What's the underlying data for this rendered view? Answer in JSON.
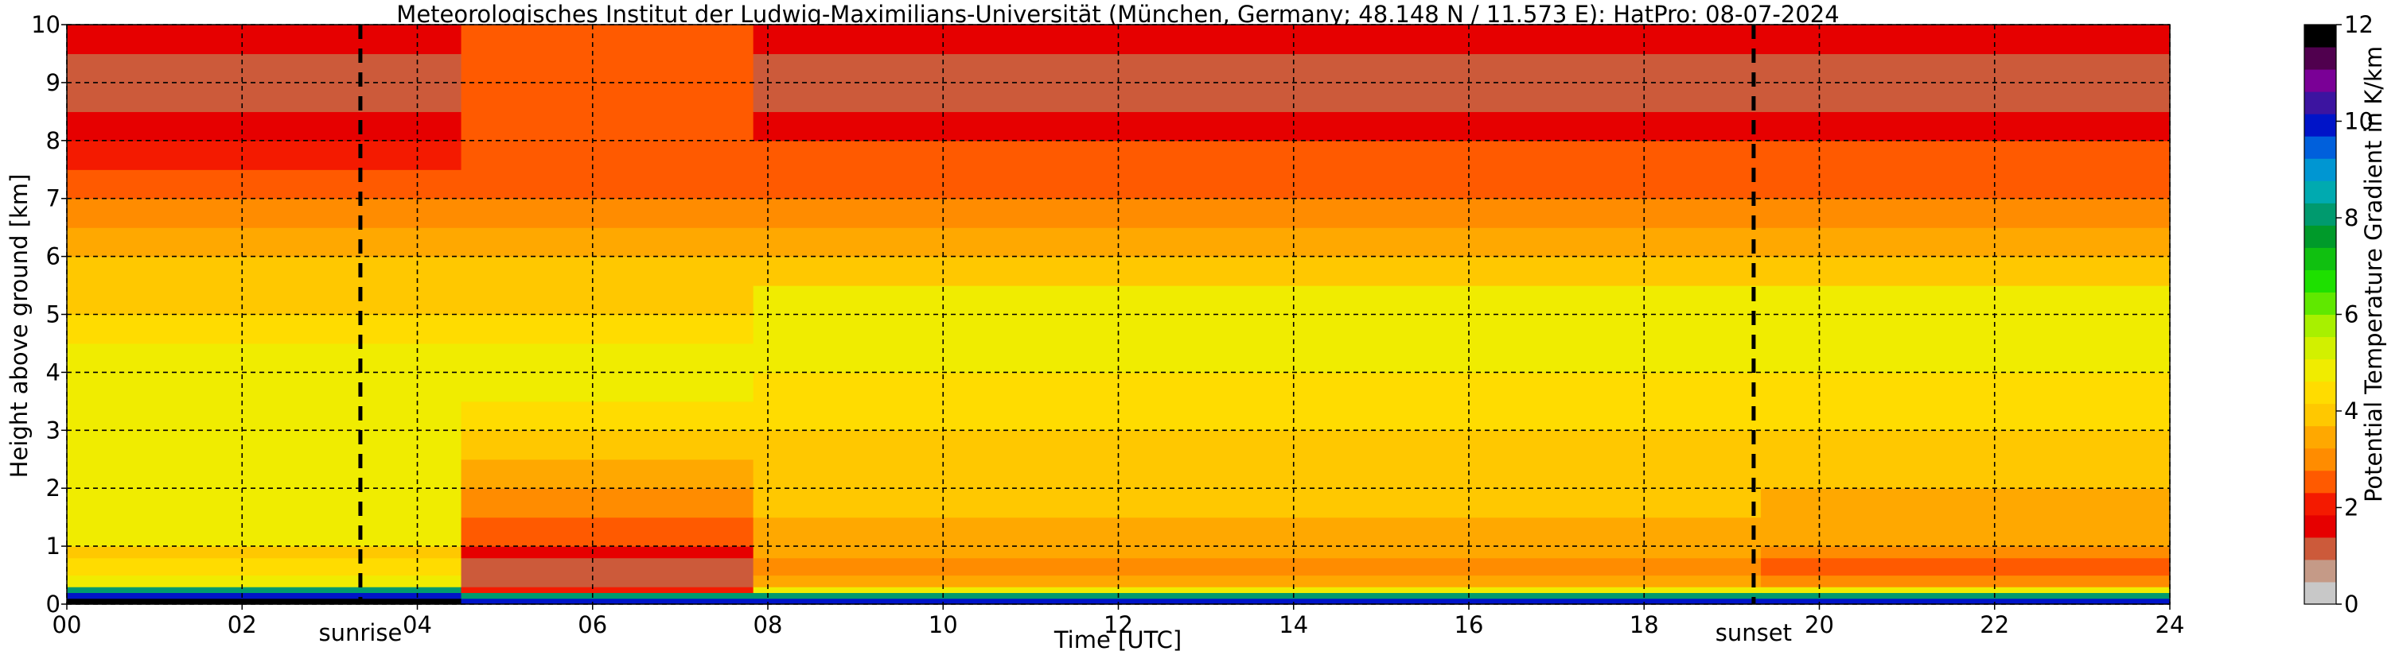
{
  "title": "Meteorologisches Institut der Ludwig-Maximilians-Universität (München, Germany; 48.148 N / 11.573 E):    HatPro: 08-07-2024",
  "chart_data": {
    "type": "heatmap",
    "title": "Meteorologisches Institut der Ludwig-Maximilians-Universität (München, Germany; 48.148 N / 11.573 E):    HatPro: 08-07-2024",
    "xlabel": "Time [UTC]",
    "ylabel": "Height above ground [km]",
    "xlim": [
      0,
      24
    ],
    "ylim": [
      0,
      10
    ],
    "x_ticks": [
      0,
      2,
      4,
      6,
      8,
      10,
      12,
      14,
      16,
      18,
      20,
      22,
      24
    ],
    "x_tick_labels": [
      "00",
      "02",
      "04",
      "06",
      "08",
      "10",
      "12",
      "14",
      "16",
      "18",
      "20",
      "22",
      "24"
    ],
    "y_ticks": [
      0,
      1,
      2,
      3,
      4,
      5,
      6,
      7,
      8,
      9,
      10
    ],
    "y_tick_labels": [
      "0",
      "1",
      "2",
      "3",
      "4",
      "5",
      "6",
      "7",
      "8",
      "9",
      "10"
    ],
    "grid": true,
    "events": [
      {
        "label": "sunrise",
        "time": 3.35
      },
      {
        "label": "sunset",
        "time": 19.25
      }
    ],
    "colorbar": {
      "label": "Potential Temperature Gradient in K/km",
      "range": [
        0,
        12
      ],
      "ticks": [
        0,
        2,
        4,
        6,
        8,
        10,
        12
      ],
      "tick_labels": [
        "0",
        "2",
        "4",
        "6",
        "8",
        "10",
        "12"
      ],
      "colors": [
        "#c8c8c8",
        "#c59a87",
        "#cc5a3a",
        "#e60000",
        "#f41a00",
        "#ff5a00",
        "#ff8c00",
        "#ffa800",
        "#ffc800",
        "#ffdc00",
        "#f0ec00",
        "#d2f000",
        "#a8f000",
        "#60e800",
        "#1ee000",
        "#10c010",
        "#009a2a",
        "#009a6e",
        "#00aab0",
        "#0096d2",
        "#0060dc",
        "#0014c8",
        "#3c14a0",
        "#7a0096",
        "#50004e",
        "#000000"
      ]
    },
    "profiles_height_km": [
      0,
      0.1,
      0.2,
      0.3,
      0.5,
      0.8,
      1.0,
      1.5,
      2.0,
      2.5,
      3.0,
      3.5,
      4.0,
      4.5,
      5.0,
      5.5,
      6.0,
      6.5,
      7.0,
      7.5,
      8.0,
      8.5,
      9.0,
      9.5,
      10.0
    ],
    "profiles": [
      {
        "period": "00:00-04:30",
        "values": [
          12,
          10,
          8,
          5,
          4.4,
          4.0,
          5.0,
          5.0,
          5.0,
          5.0,
          4.8,
          5.0,
          4.8,
          4.2,
          3.8,
          3.6,
          3.2,
          2.8,
          2.5,
          2.1,
          1.2,
          1.0,
          1.0,
          1.2,
          2.2
        ]
      },
      {
        "period": "04:30-07:50",
        "values": [
          10,
          8,
          2.0,
          1.0,
          1.0,
          1.6,
          2.5,
          3.0,
          3.3,
          4.0,
          4.4,
          5.0,
          4.8,
          4.4,
          4.0,
          3.8,
          3.4,
          3.0,
          2.6,
          2.4,
          2.3,
          2.2,
          2.2,
          2.3,
          2.4
        ]
      },
      {
        "period": "07:50-19:20",
        "values": [
          10,
          8,
          5,
          3.2,
          2.9,
          3.3,
          3.5,
          3.7,
          3.8,
          4.0,
          4.2,
          4.3,
          4.8,
          4.9,
          4.8,
          3.9,
          3.4,
          2.9,
          2.6,
          2.3,
          1.3,
          1.1,
          1.0,
          1.3,
          2.2
        ]
      },
      {
        "period": "19:20-24:00",
        "values": [
          10,
          8,
          5,
          3.0,
          2.6,
          3.0,
          3.3,
          3.5,
          3.7,
          4.0,
          4.3,
          4.4,
          4.8,
          4.9,
          4.8,
          3.9,
          3.4,
          2.9,
          2.6,
          2.3,
          1.3,
          1.1,
          1.0,
          1.3,
          2.2
        ]
      }
    ]
  }
}
